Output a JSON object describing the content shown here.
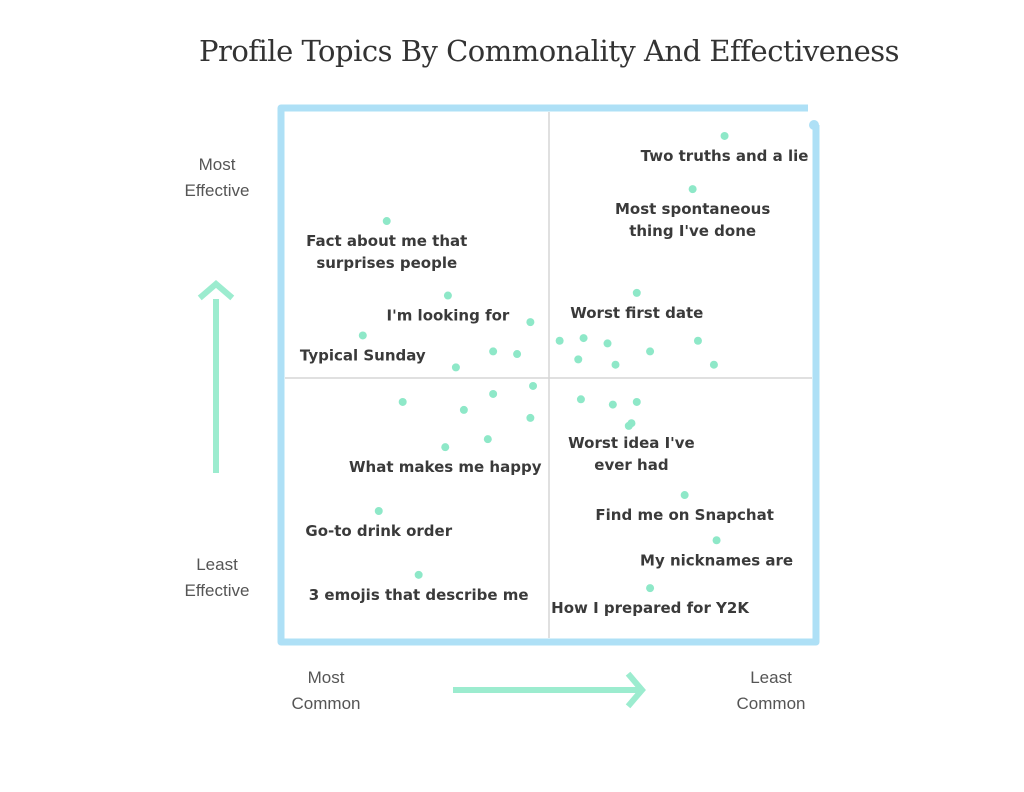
{
  "title": "Profile Topics By Commonality And Effectiveness",
  "colors": {
    "frame": "#aee0f6",
    "divider": "#d6d6d6",
    "dot": "#8ee8c8",
    "arrow": "#9ceccf",
    "frame_dot": "#aee0f6"
  },
  "axes": {
    "y_high": [
      "Most",
      "Effective"
    ],
    "y_low": [
      "Least",
      "Effective"
    ],
    "x_low": [
      "Most",
      "Common"
    ],
    "x_high": [
      "Least",
      "Common"
    ]
  },
  "chart_data": {
    "type": "scatter",
    "title": "Profile Topics By Commonality And Effectiveness",
    "xlabel": "Most Common → Least Common",
    "ylabel": "Least Effective → Most Effective",
    "xlim": [
      -1,
      1
    ],
    "ylim": [
      -1,
      1
    ],
    "grid": "quadrant dividers at 0",
    "labeled_points": [
      {
        "label": "Two truths and a lie",
        "x": 0.66,
        "y": 0.91
      },
      {
        "label": "Most spontaneous thing I've done",
        "x": 0.54,
        "y": 0.71
      },
      {
        "label": "Fact about me that surprises people",
        "x": -0.61,
        "y": 0.59
      },
      {
        "label": "I'm looking for",
        "x": -0.38,
        "y": 0.31
      },
      {
        "label": "Worst first date",
        "x": 0.33,
        "y": 0.32
      },
      {
        "label": "Typical Sunday",
        "x": -0.7,
        "y": 0.16
      },
      {
        "label": "Worst idea I've ever had",
        "x": 0.31,
        "y": -0.17
      },
      {
        "label": "What makes me happy",
        "x": -0.39,
        "y": -0.26
      },
      {
        "label": "Find me on Snapchat",
        "x": 0.51,
        "y": -0.44
      },
      {
        "label": "Go-to drink order",
        "x": -0.64,
        "y": -0.5
      },
      {
        "label": "My nicknames are",
        "x": 0.63,
        "y": -0.61
      },
      {
        "label": "3 emojis that describe me",
        "x": -0.49,
        "y": -0.74
      },
      {
        "label": "How I prepared for Y2K",
        "x": 0.38,
        "y": -0.79
      }
    ],
    "unlabeled_points": [
      [
        -0.07,
        0.21
      ],
      [
        0.04,
        0.14
      ],
      [
        0.13,
        0.15
      ],
      [
        0.22,
        0.13
      ],
      [
        0.38,
        0.1
      ],
      [
        0.56,
        0.14
      ],
      [
        -0.21,
        0.1
      ],
      [
        -0.12,
        0.09
      ],
      [
        0.11,
        0.07
      ],
      [
        0.25,
        0.05
      ],
      [
        0.62,
        0.05
      ],
      [
        -0.35,
        0.04
      ],
      [
        -0.55,
        -0.09
      ],
      [
        -0.06,
        -0.03
      ],
      [
        -0.21,
        -0.06
      ],
      [
        -0.32,
        -0.12
      ],
      [
        0.12,
        -0.08
      ],
      [
        0.24,
        -0.1
      ],
      [
        0.33,
        -0.09
      ],
      [
        -0.07,
        -0.15
      ],
      [
        -0.23,
        -0.23
      ],
      [
        0.3,
        -0.18
      ]
    ]
  }
}
